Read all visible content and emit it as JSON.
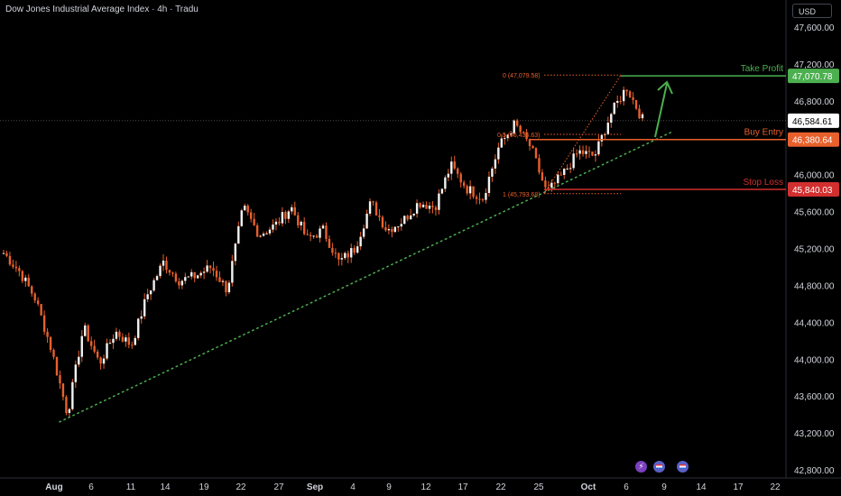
{
  "header": {
    "title": "Dow Jones Industrial Average Index · 4h · Tradu"
  },
  "currency_label": "USD",
  "event_icons": [
    {
      "name": "lightning-icon",
      "glyph": "⚡"
    },
    {
      "name": "us-flag-icon"
    },
    {
      "name": "us-flag-icon"
    }
  ],
  "colors": {
    "background": "#000000",
    "candle": "#f2f2f2",
    "candle_wick": "#e8602c",
    "take_profit": "#4caf50",
    "buy_entry": "#e8602c",
    "stop_loss": "#d32f2f",
    "trendline": "#4caf50",
    "fib": "#e8602c",
    "axis_text": "#d1d4dc"
  },
  "chart_data": {
    "type": "candlestick",
    "title": "Dow Jones Industrial Average Index · 4h · Tradu",
    "y_axis": {
      "ticks": [
        47600,
        47200,
        46800,
        46400,
        46000,
        45600,
        45200,
        44800,
        44400,
        44000,
        43600,
        43200,
        42800
      ],
      "tick_labels": [
        "47,600.00",
        "47,200.00",
        "46,800.00",
        "46,400.00",
        "46,000.00",
        "45,600.00",
        "45,200.00",
        "44,800.00",
        "44,400.00",
        "44,000.00",
        "43,600.00",
        "43,200.00",
        "42,800.00"
      ],
      "range": [
        42700,
        47900
      ]
    },
    "x_axis": {
      "labels": [
        "Aug",
        "6",
        "11",
        "14",
        "19",
        "22",
        "27",
        "Sep",
        "4",
        "9",
        "12",
        "17",
        "22",
        "25",
        "Oct",
        "6",
        "9",
        "14",
        "17",
        "22"
      ],
      "bold": [
        "Aug",
        "Sep",
        "Oct"
      ]
    },
    "levels": [
      {
        "name": "Take Profit",
        "value": 47070.78,
        "price_label": "47,070.78",
        "color": "#4caf50"
      },
      {
        "name": "Buy Entry",
        "value": 46380.64,
        "price_label": "46,380.64",
        "color": "#e8602c"
      },
      {
        "name": "Stop Loss",
        "value": 45840.03,
        "price_label": "45,840.03",
        "color": "#d32f2f"
      }
    ],
    "current_price": {
      "value": 46584.61,
      "label": "46,584.61"
    },
    "fib_levels": [
      {
        "label": "0 (47,079.58)",
        "value": 47079.58
      },
      {
        "label": "0.5 (46,436.63)",
        "value": 46436.63
      },
      {
        "label": "1 (45,793.68)",
        "value": 45793.68
      }
    ],
    "trendline": {
      "from": {
        "x_label": "Aug",
        "value": 43320
      },
      "to": {
        "x_label": "9",
        "value": 46470
      }
    },
    "key_points": [
      45150,
      44950,
      44650,
      44100,
      43400,
      44350,
      43950,
      44300,
      44150,
      44700,
      45050,
      44850,
      44900,
      45000,
      44750,
      45650,
      45350,
      45450,
      45650,
      45300,
      45400,
      45050,
      45200,
      45700,
      45400,
      45500,
      45700,
      45650,
      46100,
      45850,
      45750,
      46300,
      46550,
      46300,
      45800,
      46000,
      46250,
      46200,
      46650,
      46950,
      46600
    ]
  }
}
